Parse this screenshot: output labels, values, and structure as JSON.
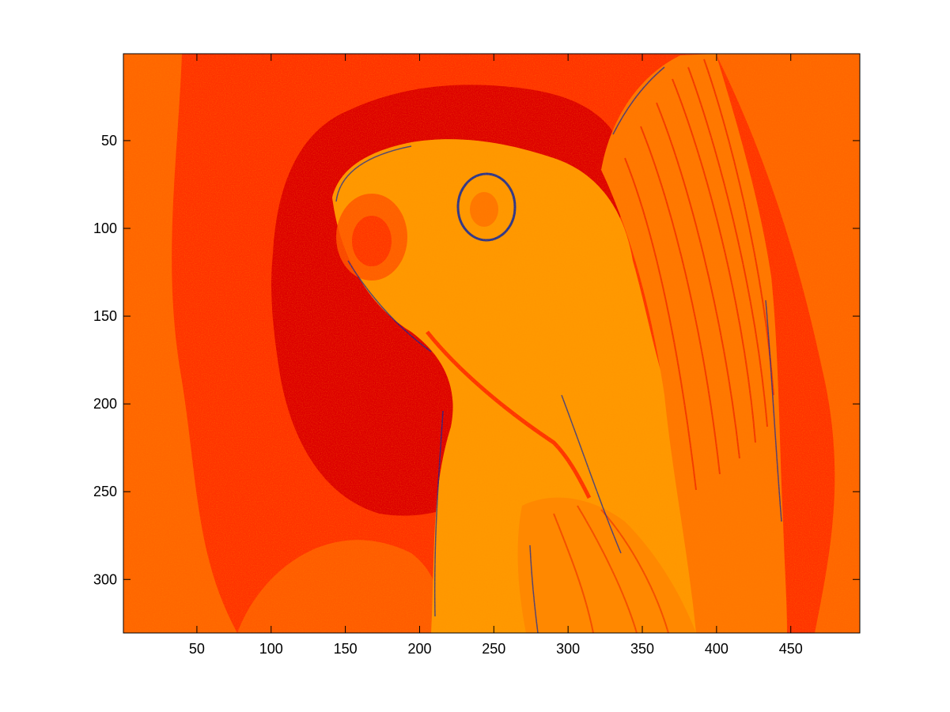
{
  "chart_data": {
    "type": "heatmap",
    "title": "",
    "xlabel": "",
    "ylabel": "",
    "xlim": [
      0.5,
      496.5
    ],
    "ylim": [
      0.5,
      330.5
    ],
    "y_reversed": true,
    "grid": false,
    "legend": "none",
    "xticks": [
      50,
      100,
      150,
      200,
      250,
      300,
      350,
      400,
      450
    ],
    "xtick_labels": [
      "50",
      "100",
      "150",
      "200",
      "250",
      "300",
      "350",
      "400",
      "450"
    ],
    "yticks": [
      50,
      100,
      150,
      200,
      250,
      300
    ],
    "ytick_labels": [
      "50",
      "100",
      "150",
      "200",
      "250",
      "300"
    ],
    "image_size": {
      "columns": 496,
      "rows": 330
    },
    "colormap": "indexed image (goldfish)",
    "palette": [
      "#ff6600",
      "#ff3300",
      "#dd0000",
      "#ff9900",
      "#ffaa00",
      "#0022aa"
    ]
  }
}
